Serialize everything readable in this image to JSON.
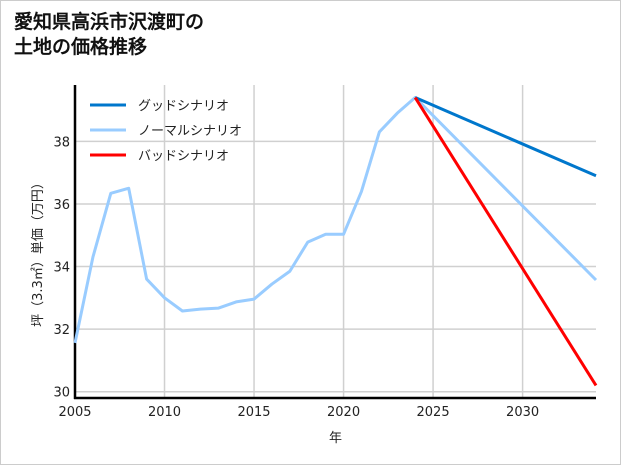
{
  "chart_data": {
    "type": "line",
    "title_lines": [
      "愛知県高浜市沢渡町の",
      "土地の価格推移"
    ],
    "xlabel": "年",
    "ylabel": "坪（3.3㎡）単価（万円）",
    "xlim": [
      2005,
      2034.1
    ],
    "ylim": [
      29.8,
      39.8
    ],
    "xticks": [
      2005,
      2010,
      2015,
      2020,
      2025,
      2030
    ],
    "yticks": [
      30,
      32,
      34,
      36,
      38
    ],
    "grid": true,
    "legend_position": "top-left",
    "series": [
      {
        "name": "グッドシナリオ",
        "color": "#0077cc",
        "x": [
          2024,
          2034.1
        ],
        "y": [
          39.4,
          36.9
        ]
      },
      {
        "name": "ノーマルシナリオ",
        "color": "#99ccff",
        "x": [
          2005,
          2006,
          2007,
          2008,
          2009,
          2010,
          2011,
          2012,
          2013,
          2014,
          2015,
          2016,
          2017,
          2018,
          2019,
          2020,
          2021,
          2022,
          2023,
          2024,
          2034.1
        ],
        "y": [
          31.56,
          34.3,
          36.34,
          36.5,
          33.6,
          33.0,
          32.58,
          32.64,
          32.67,
          32.87,
          32.96,
          33.44,
          33.85,
          34.78,
          35.03,
          35.03,
          36.4,
          38.3,
          38.9,
          39.4,
          33.57
        ]
      },
      {
        "name": "バッドシナリオ",
        "color": "#ff0000",
        "x": [
          2024,
          2034.1
        ],
        "y": [
          39.4,
          30.2
        ]
      }
    ]
  }
}
